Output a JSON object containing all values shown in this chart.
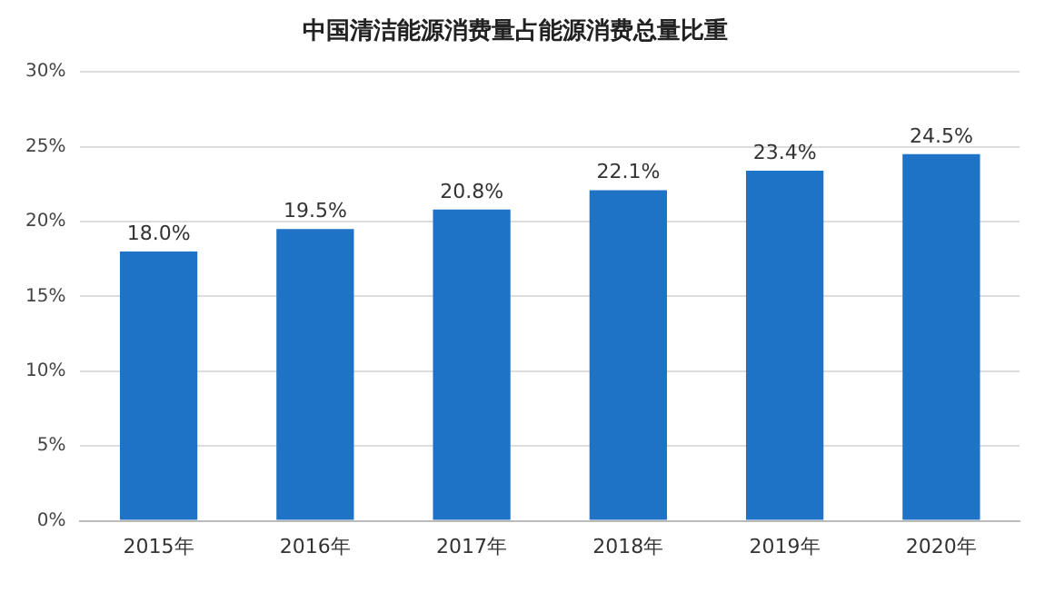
{
  "chart_data": {
    "type": "bar",
    "title": "中国清洁能源消费量占能源消费总量比重",
    "categories": [
      "2015年",
      "2016年",
      "2017年",
      "2018年",
      "2019年",
      "2020年"
    ],
    "values": [
      18.0,
      19.5,
      20.8,
      22.1,
      23.4,
      24.5
    ],
    "value_labels": [
      "18.0%",
      "19.5%",
      "20.8%",
      "22.1%",
      "23.4%",
      "24.5%"
    ],
    "color": "#1f73c6",
    "ylim": [
      0,
      30
    ],
    "yticks": [
      {
        "value": 0,
        "label": "0%"
      },
      {
        "value": 5,
        "label": "5%"
      },
      {
        "value": 10,
        "label": "10%"
      },
      {
        "value": 15,
        "label": "15%"
      },
      {
        "value": 20,
        "label": "20%"
      },
      {
        "value": 25,
        "label": "25%"
      },
      {
        "value": 30,
        "label": "30%"
      }
    ],
    "grid": "y"
  }
}
